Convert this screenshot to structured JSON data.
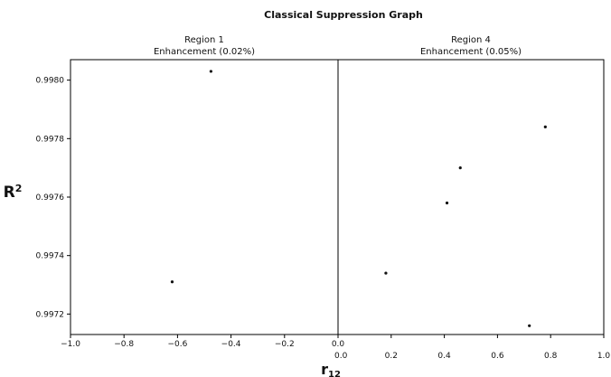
{
  "chart_data": {
    "type": "scatter",
    "title": "Classical Suppression Graph",
    "ylabel_base": "R",
    "ylabel_sup": "2",
    "xlabel_base": "r",
    "xlabel_sub": "12",
    "ylim": [
      0.99713,
      0.99807
    ],
    "yticks": [
      0.9972,
      0.9974,
      0.9976,
      0.9978,
      0.998
    ],
    "ytick_labels": [
      "0.9972",
      "0.9974",
      "0.9976",
      "0.9978",
      "0.9980"
    ],
    "grid": false,
    "panels": [
      {
        "title": "Region 1",
        "subtitle": "Enhancement (0.02%)",
        "xlim": [
          -1.0,
          0.0
        ],
        "xticks": [
          -1.0,
          -0.8,
          -0.6,
          -0.4,
          -0.2,
          0.0
        ],
        "xtick_labels": [
          "−1.0",
          "−0.8",
          "−0.6",
          "−0.4",
          "−0.2",
          "0.0"
        ],
        "points": [
          {
            "x": -0.475,
            "y": 0.99803
          },
          {
            "x": -0.62,
            "y": 0.99731
          }
        ]
      },
      {
        "title": "Region 4",
        "subtitle": "Enhancement (0.05%)",
        "xlim": [
          0.0,
          1.0
        ],
        "xticks": [
          0.0,
          0.2,
          0.4,
          0.6,
          0.8,
          1.0
        ],
        "xtick_labels": [
          "0.0",
          "0.2",
          "0.4",
          "0.6",
          "0.8",
          "1.0"
        ],
        "points": [
          {
            "x": 0.78,
            "y": 0.99784
          },
          {
            "x": 0.46,
            "y": 0.9977
          },
          {
            "x": 0.41,
            "y": 0.99758
          },
          {
            "x": 0.18,
            "y": 0.99734
          },
          {
            "x": 0.72,
            "y": 0.99716
          }
        ]
      }
    ]
  }
}
